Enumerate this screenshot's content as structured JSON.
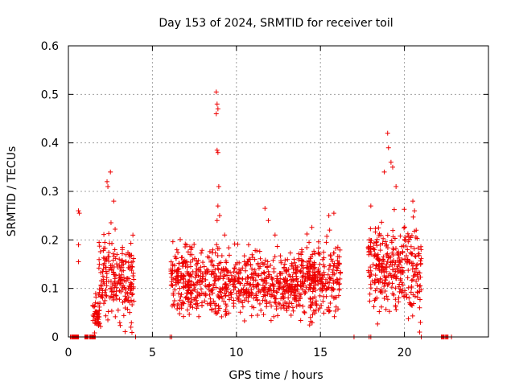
{
  "chart_data": {
    "type": "scatter",
    "title": "Day 153 of 2024, SRMTID for receiver toil",
    "xlabel": "GPS time / hours",
    "ylabel": "SRMTID / TECUs",
    "xlim": [
      0,
      25
    ],
    "ylim": [
      0,
      0.6
    ],
    "x_ticks": [
      0,
      5,
      10,
      15,
      20
    ],
    "x_tick_labels": [
      "0",
      "5",
      "10",
      "15",
      "20"
    ],
    "y_ticks": [
      0,
      0.1,
      0.2,
      0.3,
      0.4,
      0.5,
      0.6
    ],
    "y_tick_labels": [
      "0",
      "0.1",
      "0.2",
      "0.3",
      "0.4",
      "0.5",
      "0.6"
    ],
    "grid": true,
    "marker": "+",
    "color": "#ee0000",
    "series": [
      {
        "name": "SRMTID",
        "clusters": [
          {
            "x_range": [
              0.05,
              0.7
            ],
            "y_center": 0.0,
            "spread": 0.0,
            "count": 30
          },
          {
            "x_range": [
              0.95,
              1.6
            ],
            "y_center": 0.0,
            "spread": 0.0,
            "count": 30
          },
          {
            "x_range": [
              1.45,
              1.85
            ],
            "y_center": 0.05,
            "spread": 0.025,
            "count": 40
          },
          {
            "x_range": [
              1.8,
              3.9
            ],
            "y_center": 0.12,
            "spread": 0.06,
            "count": 220
          },
          {
            "x_range": [
              6.1,
              7.3
            ],
            "y_center": 0.12,
            "spread": 0.05,
            "count": 150
          },
          {
            "x_range": [
              7.3,
              13.8
            ],
            "y_center": 0.11,
            "spread": 0.045,
            "count": 600
          },
          {
            "x_range": [
              13.8,
              16.2
            ],
            "y_center": 0.12,
            "spread": 0.05,
            "count": 260
          },
          {
            "x_range": [
              17.8,
              21.0
            ],
            "y_center": 0.14,
            "spread": 0.06,
            "count": 320
          },
          {
            "x_range": [
              22.2,
              22.6
            ],
            "y_center": 0.0,
            "spread": 0.0,
            "count": 12
          }
        ],
        "points": [
          [
            0.6,
            0.26
          ],
          [
            0.65,
            0.255
          ],
          [
            0.6,
            0.19
          ],
          [
            0.6,
            0.155
          ],
          [
            2.3,
            0.32
          ],
          [
            2.35,
            0.31
          ],
          [
            2.5,
            0.34
          ],
          [
            2.7,
            0.28
          ],
          [
            8.8,
            0.505
          ],
          [
            8.85,
            0.48
          ],
          [
            8.9,
            0.47
          ],
          [
            8.8,
            0.46
          ],
          [
            8.85,
            0.385
          ],
          [
            8.9,
            0.38
          ],
          [
            8.95,
            0.31
          ],
          [
            8.9,
            0.27
          ],
          [
            9.0,
            0.25
          ],
          [
            9.3,
            0.21
          ],
          [
            8.85,
            0.24
          ],
          [
            11.7,
            0.265
          ],
          [
            11.9,
            0.24
          ],
          [
            12.3,
            0.21
          ],
          [
            15.5,
            0.25
          ],
          [
            15.8,
            0.255
          ],
          [
            19.0,
            0.42
          ],
          [
            19.05,
            0.39
          ],
          [
            19.2,
            0.36
          ],
          [
            19.3,
            0.35
          ],
          [
            18.8,
            0.34
          ],
          [
            19.5,
            0.31
          ],
          [
            20.5,
            0.28
          ],
          [
            20.6,
            0.26
          ],
          [
            18.0,
            0.27
          ],
          [
            20.7,
            0.22
          ],
          [
            20.9,
            0.06
          ],
          [
            20.95,
            0.03
          ],
          [
            20.9,
            0.01
          ],
          [
            21.0,
            0.0
          ],
          [
            4.0,
            0.0
          ],
          [
            6.05,
            0.0
          ],
          [
            6.15,
            0.0
          ],
          [
            17.9,
            0.0
          ],
          [
            18.0,
            0.0
          ],
          [
            17.0,
            0.0
          ],
          [
            22.3,
            0.0
          ],
          [
            22.5,
            0.0
          ],
          [
            22.8,
            0.0
          ]
        ]
      }
    ]
  }
}
